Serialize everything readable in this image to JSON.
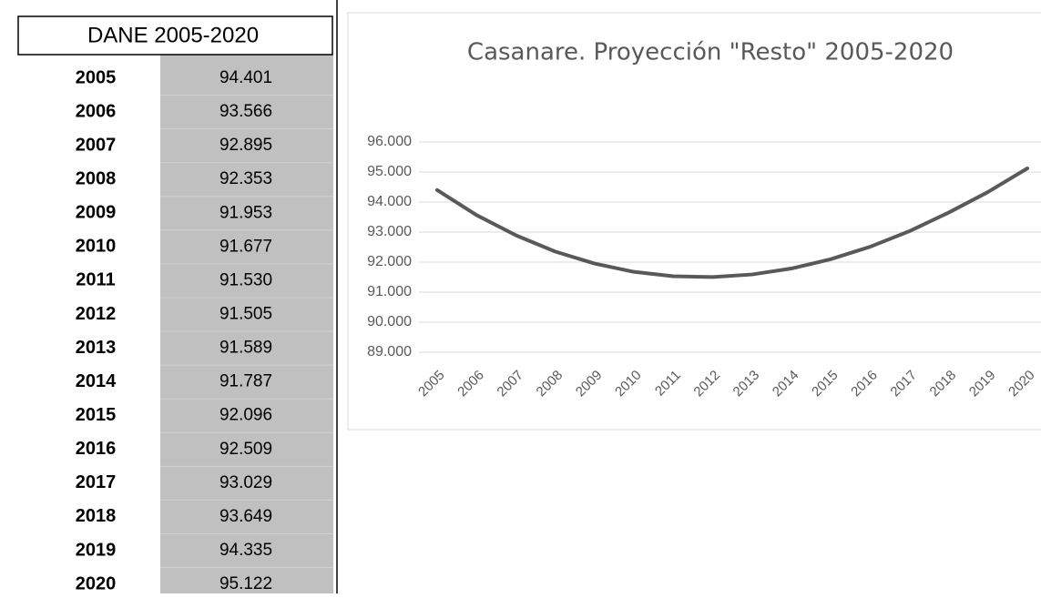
{
  "table": {
    "header": "DANE 2005-2020",
    "rows": [
      [
        "2005",
        "94.401"
      ],
      [
        "2006",
        "93.566"
      ],
      [
        "2007",
        "92.895"
      ],
      [
        "2008",
        "92.353"
      ],
      [
        "2009",
        "91.953"
      ],
      [
        "2010",
        "91.677"
      ],
      [
        "2011",
        "91.530"
      ],
      [
        "2012",
        "91.505"
      ],
      [
        "2013",
        "91.589"
      ],
      [
        "2014",
        "91.787"
      ],
      [
        "2015",
        "92.096"
      ],
      [
        "2016",
        "92.509"
      ],
      [
        "2017",
        "93.029"
      ],
      [
        "2018",
        "93.649"
      ],
      [
        "2019",
        "94.335"
      ],
      [
        "2020",
        "95.122"
      ]
    ]
  },
  "chart_data": {
    "type": "line",
    "title": "Casanare. Proyección \"Resto\" 2005-2020",
    "categories": [
      "2005",
      "2006",
      "2007",
      "2008",
      "2009",
      "2010",
      "2011",
      "2012",
      "2013",
      "2014",
      "2015",
      "2016",
      "2017",
      "2018",
      "2019",
      "2020"
    ],
    "series": [
      {
        "name": "Resto",
        "color": "#595959",
        "values": [
          94401,
          93566,
          92895,
          92353,
          91953,
          91677,
          91530,
          91505,
          91589,
          91787,
          92096,
          92509,
          93029,
          93649,
          94335,
          95122
        ]
      }
    ],
    "ylim": [
      89000,
      96000
    ],
    "yticks": [
      {
        "value": 89000,
        "label": "89.000"
      },
      {
        "value": 90000,
        "label": "90.000"
      },
      {
        "value": 91000,
        "label": "91.000"
      },
      {
        "value": 92000,
        "label": "92.000"
      },
      {
        "value": 93000,
        "label": "93.000"
      },
      {
        "value": 94000,
        "label": "94.000"
      },
      {
        "value": 95000,
        "label": "95.000"
      },
      {
        "value": 96000,
        "label": "96.000"
      }
    ],
    "grid": true
  }
}
